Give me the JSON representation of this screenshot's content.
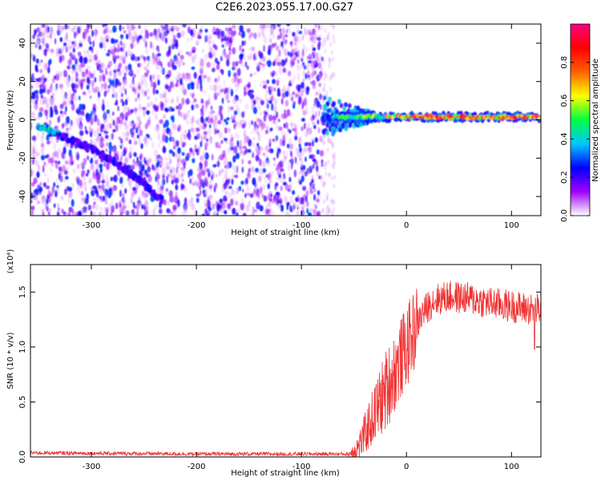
{
  "title": "C2E6.2023.055.17.00.G27",
  "chart_data": [
    {
      "type": "heatmap",
      "xlabel": "Height of straight line (km)",
      "ylabel": "Frequency (Hz)",
      "xlim": [
        -358,
        128
      ],
      "ylim": [
        -50,
        50
      ],
      "xticks": [
        -300,
        -200,
        -100,
        0,
        100
      ],
      "yticks": [
        -40,
        -20,
        0,
        20,
        40
      ],
      "colorbar": {
        "label": "Normalized spectral amplitude",
        "range": [
          0,
          1
        ],
        "ticks": [
          "0.0",
          "0.2",
          "0.4",
          "0.6",
          "0.8"
        ],
        "colormap": [
          "#ffffff",
          "#a000ff",
          "#0000ff",
          "#00c8ff",
          "#00ff40",
          "#ffff00",
          "#ff6000",
          "#ff0000",
          "#ff0080"
        ]
      },
      "features": [
        {
          "desc": "diffuse noise",
          "x": [
            -358,
            -80
          ],
          "freq": [
            -50,
            50
          ],
          "amplitude": 0.15
        },
        {
          "desc": "descending trace",
          "points": [
            [
              -350,
              -3
            ],
            [
              -330,
              -8
            ],
            [
              -300,
              -15
            ],
            [
              -270,
              -25
            ],
            [
              -250,
              -33
            ],
            [
              -233,
              -42
            ]
          ]
        },
        {
          "desc": "carrier line",
          "x": [
            -80,
            128
          ],
          "freq": 1.5,
          "amplitude": 0.85
        }
      ]
    },
    {
      "type": "line",
      "xlabel": "Height of straight line (km)",
      "ylabel": "SNR (10 * v/v)",
      "y_multiplier": "(x10⁴)",
      "xlim": [
        -358,
        128
      ],
      "ylim": [
        0,
        1.75
      ],
      "xticks": [
        -300,
        -200,
        -100,
        0,
        100
      ],
      "yticks": [
        "0.0",
        "0.5",
        "1.0",
        "1.5"
      ],
      "color": "#f03030",
      "profile": {
        "x": [
          -358,
          -200,
          -100,
          -55,
          -45,
          -35,
          -25,
          -15,
          -5,
          5,
          15,
          25,
          40,
          60,
          80,
          100,
          120,
          128
        ],
        "y": [
          0.03,
          0.02,
          0.02,
          0.02,
          0.1,
          0.3,
          0.5,
          0.7,
          0.9,
          1.1,
          1.3,
          1.42,
          1.46,
          1.44,
          1.4,
          1.37,
          1.34,
          1.34
        ]
      }
    }
  ]
}
